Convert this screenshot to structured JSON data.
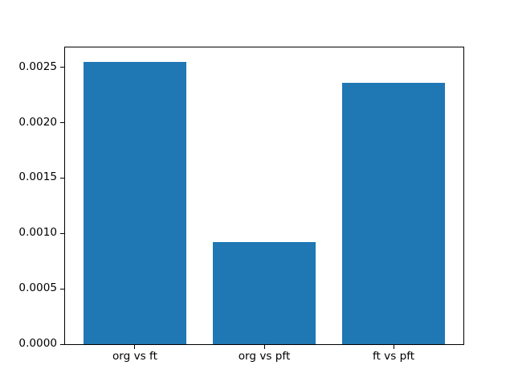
{
  "figure": {
    "background": "#ffffff",
    "spine_color": "#000000",
    "tick_color": "#000000",
    "text_color": "#000000"
  },
  "chart_data": {
    "type": "bar",
    "title": "",
    "xlabel": "",
    "ylabel": "",
    "categories": [
      "org vs ft",
      "org vs pft",
      "ft vs pft"
    ],
    "values": [
      0.00255,
      0.00092,
      0.00236
    ],
    "bar_color": "#1f77b4",
    "bar_width_fraction": 0.8,
    "ylim": [
      0,
      0.00268
    ],
    "y_ticks": [
      {
        "value": 0.0,
        "label": "0.0000"
      },
      {
        "value": 0.0005,
        "label": "0.0005"
      },
      {
        "value": 0.001,
        "label": "0.0010"
      },
      {
        "value": 0.0015,
        "label": "0.0015"
      },
      {
        "value": 0.002,
        "label": "0.0020"
      },
      {
        "value": 0.0025,
        "label": "0.0025"
      }
    ],
    "grid": false,
    "legend": null
  }
}
